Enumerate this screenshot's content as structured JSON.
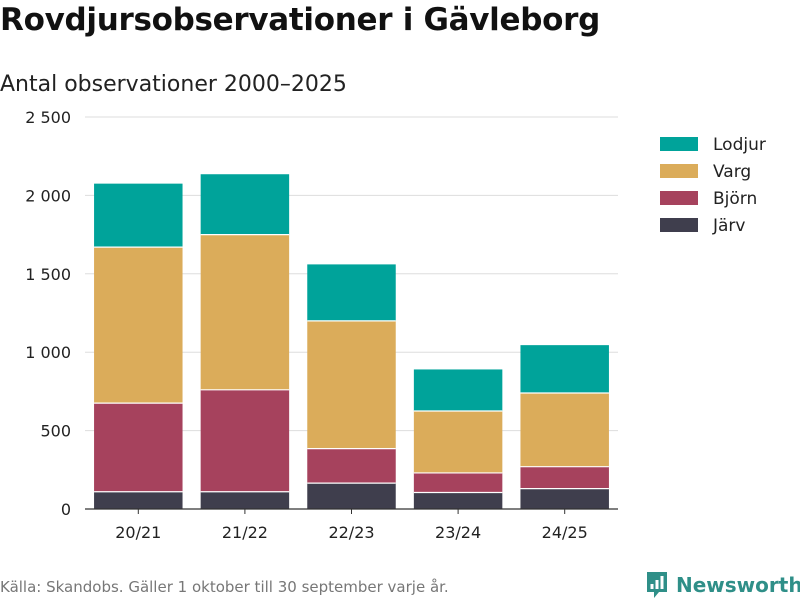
{
  "header": {
    "title": "Rovdjursobservationer i Gävleborg",
    "subtitle": "Antal observationer 2000–2025"
  },
  "chart_data": {
    "type": "bar",
    "stacked": true,
    "categories": [
      "20/21",
      "21/22",
      "22/23",
      "23/24",
      "24/25"
    ],
    "series": [
      {
        "name": "Järv",
        "color": "#3f3e4d",
        "values": [
          110,
          110,
          165,
          105,
          130
        ]
      },
      {
        "name": "Björn",
        "color": "#a6425d",
        "values": [
          565,
          650,
          220,
          125,
          140
        ]
      },
      {
        "name": "Varg",
        "color": "#dbac5a",
        "values": [
          995,
          990,
          815,
          395,
          470
        ]
      },
      {
        "name": "Lodjur",
        "color": "#00a39a",
        "values": [
          405,
          385,
          360,
          265,
          305
        ]
      }
    ],
    "ylim": [
      0,
      2500
    ],
    "yticks": [
      0,
      500,
      1000,
      1500,
      2000,
      2500
    ],
    "ytick_labels": [
      "0",
      "500",
      "1 000",
      "1 500",
      "2 000",
      "2 500"
    ],
    "xlabel": "",
    "ylabel": "",
    "grid": true,
    "legend_position": "top-right",
    "legend_order": [
      "Lodjur",
      "Varg",
      "Björn",
      "Järv"
    ]
  },
  "footer": {
    "source": "Källa: Skandobs. Gäller 1 oktober till 30 september varje år.",
    "brand": "Newsworthy",
    "brand_color": "#2f8f88"
  }
}
